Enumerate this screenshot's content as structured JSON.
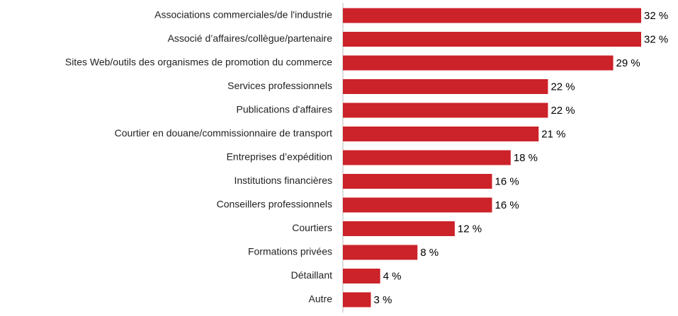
{
  "chart_data": {
    "type": "bar",
    "orientation": "horizontal",
    "categories": [
      "Associations commerciales/de l'industrie",
      "Associé d’affaires/collègue/partenaire",
      "Sites Web/outils des organismes de promotion du commerce",
      "Services professionnels",
      "Publications d'affaires",
      "Courtier en douane/commissionnaire de transport",
      "Entreprises d’expédition",
      "Institutions financières",
      "Conseillers professionnels",
      "Courtiers",
      "Formations privées",
      "Détaillant",
      "Autre"
    ],
    "values": [
      32,
      32,
      29,
      22,
      22,
      21,
      18,
      16,
      16,
      12,
      8,
      4,
      3
    ],
    "value_labels": [
      "32 %",
      "32 %",
      "29 %",
      "22 %",
      "22 %",
      "21 %",
      "18 %",
      "16 %",
      "16 %",
      "12 %",
      "8 %",
      "4 %",
      "3 %"
    ],
    "color": "#cc2229"
  }
}
